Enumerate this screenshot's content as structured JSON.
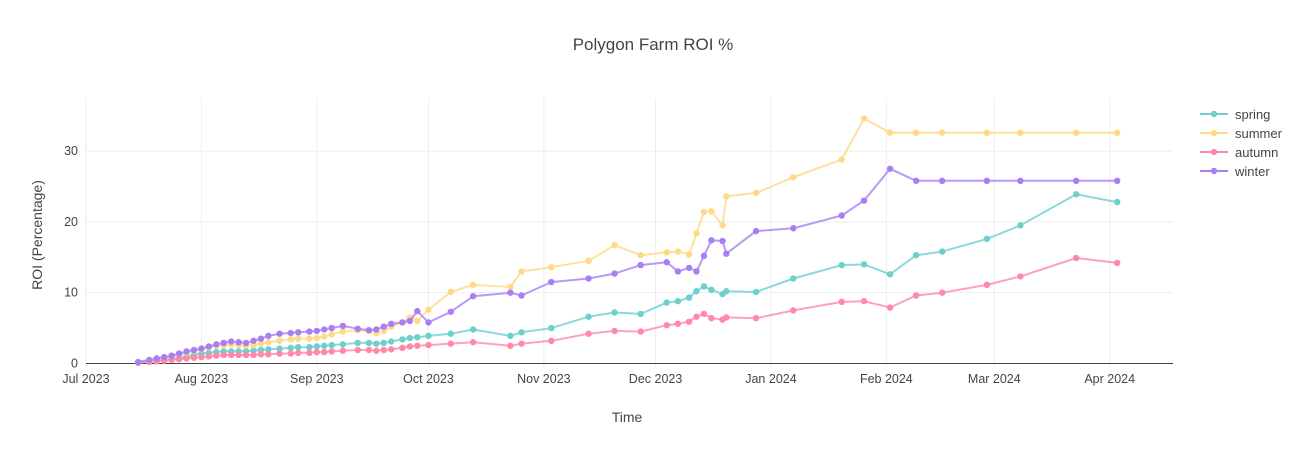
{
  "chart_data": {
    "type": "line",
    "title": "Polygon Farm ROI %",
    "xlabel": "Time",
    "ylabel": "ROI (Percentage)",
    "x_ticks": [
      "Jul 2023",
      "Aug 2023",
      "Sep 2023",
      "Oct 2023",
      "Nov 2023",
      "Dec 2023",
      "Jan 2024",
      "Feb 2024",
      "Mar 2024",
      "Apr 2024"
    ],
    "x_tick_dates": [
      "2023-07-01",
      "2023-08-01",
      "2023-09-01",
      "2023-10-01",
      "2023-11-01",
      "2023-12-01",
      "2024-01-01",
      "2024-02-01",
      "2024-03-01",
      "2024-04-01"
    ],
    "xlim": [
      "2023-07-01",
      "2024-04-18"
    ],
    "y_ticks": [
      0,
      10,
      20,
      30
    ],
    "ylim": [
      -0.5,
      37.5
    ],
    "grid": true,
    "legend_position": "top-right",
    "x": [
      "2023-07-15",
      "2023-07-18",
      "2023-07-20",
      "2023-07-22",
      "2023-07-24",
      "2023-07-26",
      "2023-07-28",
      "2023-07-30",
      "2023-08-01",
      "2023-08-03",
      "2023-08-05",
      "2023-08-07",
      "2023-08-09",
      "2023-08-11",
      "2023-08-13",
      "2023-08-15",
      "2023-08-17",
      "2023-08-19",
      "2023-08-22",
      "2023-08-25",
      "2023-08-27",
      "2023-08-30",
      "2023-09-01",
      "2023-09-03",
      "2023-09-05",
      "2023-09-08",
      "2023-09-12",
      "2023-09-15",
      "2023-09-17",
      "2023-09-19",
      "2023-09-21",
      "2023-09-24",
      "2023-09-26",
      "2023-09-28",
      "2023-10-01",
      "2023-10-07",
      "2023-10-13",
      "2023-10-23",
      "2023-10-26",
      "2023-11-03",
      "2023-11-13",
      "2023-11-20",
      "2023-11-27",
      "2023-12-04",
      "2023-12-07",
      "2023-12-10",
      "2023-12-12",
      "2023-12-14",
      "2023-12-16",
      "2023-12-19",
      "2023-12-20",
      "2023-12-28",
      "2024-01-07",
      "2024-01-20",
      "2024-01-26",
      "2024-02-02",
      "2024-02-09",
      "2024-02-16",
      "2024-02-28",
      "2024-03-08",
      "2024-03-23",
      "2024-04-03"
    ],
    "series": [
      {
        "name": "spring",
        "color": "#6ecfcf",
        "values": [
          0.1,
          0.3,
          0.4,
          0.5,
          0.6,
          0.8,
          1.0,
          1.2,
          1.4,
          1.5,
          1.6,
          1.7,
          1.7,
          1.7,
          1.7,
          1.8,
          1.9,
          2.0,
          2.1,
          2.2,
          2.3,
          2.3,
          2.4,
          2.5,
          2.6,
          2.7,
          2.9,
          2.9,
          2.8,
          2.9,
          3.1,
          3.4,
          3.6,
          3.7,
          3.9,
          4.2,
          4.8,
          3.9,
          4.4,
          5.0,
          6.6,
          7.2,
          7.0,
          8.6,
          8.8,
          9.3,
          10.2,
          10.9,
          10.4,
          9.8,
          10.2,
          10.1,
          12.0,
          13.9,
          14.0,
          12.6,
          15.3,
          15.8,
          17.6,
          19.5,
          23.9,
          22.8
        ]
      },
      {
        "name": "summer",
        "color": "#ffd986",
        "values": [
          0.2,
          0.4,
          0.6,
          0.8,
          1.0,
          1.2,
          1.5,
          1.8,
          2.0,
          2.3,
          2.5,
          2.6,
          2.7,
          2.6,
          2.5,
          2.6,
          2.8,
          3.0,
          3.2,
          3.4,
          3.5,
          3.5,
          3.6,
          3.8,
          4.1,
          4.5,
          4.7,
          4.6,
          4.3,
          4.6,
          5.2,
          5.8,
          6.5,
          6.0,
          7.6,
          10.1,
          11.1,
          10.8,
          13.0,
          13.6,
          14.5,
          16.7,
          15.3,
          15.7,
          15.8,
          15.4,
          18.4,
          21.4,
          21.5,
          19.5,
          23.6,
          24.1,
          26.3,
          28.8,
          34.6,
          32.6,
          32.6,
          32.6,
          32.6,
          32.6,
          32.6,
          32.6
        ]
      },
      {
        "name": "autumn",
        "color": "#ff8aa8",
        "values": [
          0.1,
          0.2,
          0.3,
          0.4,
          0.5,
          0.6,
          0.7,
          0.8,
          0.9,
          1.0,
          1.1,
          1.2,
          1.2,
          1.2,
          1.2,
          1.2,
          1.3,
          1.3,
          1.4,
          1.4,
          1.5,
          1.5,
          1.6,
          1.6,
          1.7,
          1.8,
          1.9,
          1.9,
          1.8,
          1.9,
          2.0,
          2.2,
          2.4,
          2.5,
          2.6,
          2.8,
          3.0,
          2.5,
          2.8,
          3.2,
          4.2,
          4.6,
          4.5,
          5.4,
          5.6,
          5.9,
          6.6,
          7.0,
          6.4,
          6.2,
          6.5,
          6.4,
          7.5,
          8.7,
          8.8,
          7.9,
          9.6,
          10.0,
          11.1,
          12.3,
          14.9,
          14.2
        ]
      },
      {
        "name": "winter",
        "color": "#a97ef5",
        "values": [
          0.2,
          0.5,
          0.7,
          0.9,
          1.1,
          1.4,
          1.7,
          1.9,
          2.1,
          2.4,
          2.7,
          2.9,
          3.1,
          3.0,
          2.9,
          3.2,
          3.5,
          3.9,
          4.2,
          4.3,
          4.4,
          4.5,
          4.6,
          4.8,
          5.0,
          5.3,
          4.9,
          4.7,
          4.8,
          5.2,
          5.6,
          5.8,
          6.0,
          7.4,
          5.8,
          7.3,
          9.5,
          10.0,
          9.6,
          11.5,
          12.0,
          12.7,
          13.9,
          14.3,
          13.0,
          13.5,
          13.0,
          15.2,
          17.4,
          17.3,
          15.5,
          18.7,
          19.1,
          20.9,
          23.0,
          27.5,
          25.8,
          25.8,
          25.8,
          25.8,
          25.8,
          25.8
        ]
      }
    ]
  }
}
